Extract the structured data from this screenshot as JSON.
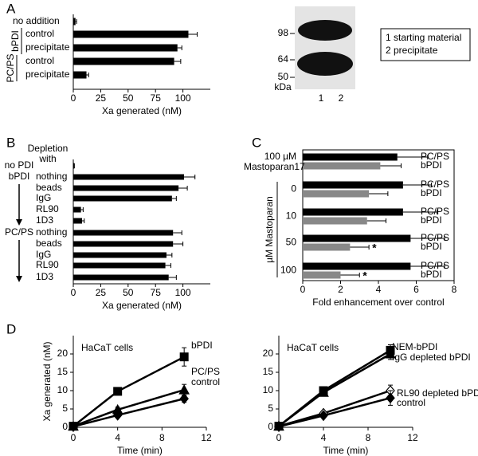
{
  "panels": [
    "A",
    "B",
    "C",
    "D"
  ],
  "gel": {
    "markers": [
      "98",
      "64",
      "50"
    ],
    "unit": "kDa",
    "lanes": [
      "1",
      "2"
    ],
    "legend": [
      "1 starting material",
      "2 precipitate"
    ]
  },
  "chart_data": [
    {
      "type": "hbar",
      "xlabel": "Xa generated (nM)",
      "xlim": [
        0,
        125
      ],
      "xticks": [
        0,
        25,
        50,
        75,
        100
      ],
      "color": "#000000",
      "groups": [
        {
          "categories": [
            "no addition"
          ],
          "values": [
            2
          ],
          "errors": [
            1
          ]
        },
        {
          "label": "bPDI",
          "categories": [
            "control",
            "precipitate"
          ],
          "values": [
            105,
            95
          ],
          "errors": [
            8,
            4
          ]
        },
        {
          "label": "PC/PS",
          "categories": [
            "control",
            "precipitate"
          ],
          "values": [
            92,
            12
          ],
          "errors": [
            6,
            2
          ]
        }
      ]
    },
    {
      "type": "hbar",
      "header": "Depletion with",
      "xlabel": "Xa generated (nM)",
      "xlim": [
        0,
        125
      ],
      "xticks": [
        0,
        25,
        50,
        75,
        100
      ],
      "color": "#000000",
      "groups": [
        {
          "label": "no PDI",
          "categories": [
            null
          ],
          "values": [
            1
          ],
          "errors": [
            0
          ]
        },
        {
          "label": "bPDI",
          "categories": [
            "nothing",
            "beads",
            "IgG",
            "RL90",
            "1D3"
          ],
          "values": [
            101,
            96,
            90,
            7,
            8
          ],
          "errors": [
            10,
            8,
            4,
            2,
            2
          ]
        },
        {
          "label": "PC/PS",
          "categories": [
            "nothing",
            "beads",
            "IgG",
            "RL90",
            "1D3"
          ],
          "values": [
            91,
            91,
            85,
            84,
            87
          ],
          "errors": [
            8,
            9,
            5,
            5,
            7
          ]
        }
      ]
    },
    {
      "type": "grouped-hbar",
      "xlabel": "Fold enhancement over control",
      "xlim": [
        0,
        8
      ],
      "xticks": [
        0,
        2,
        4,
        6,
        8
      ],
      "categories": [
        "100 µM Mastoparan17",
        "0",
        "10",
        "50",
        "100"
      ],
      "category_group": "µM Mastoparan",
      "series": [
        {
          "name": "PC/PS",
          "color": "#000000",
          "values": [
            5.0,
            5.3,
            5.3,
            5.7,
            5.7
          ],
          "errors": [
            1.6,
            1.5,
            1.8,
            1.8,
            1.8
          ]
        },
        {
          "name": "bPDI",
          "color": "#888888",
          "values": [
            4.1,
            3.5,
            3.4,
            2.5,
            2.0
          ],
          "errors": [
            1.1,
            1.0,
            1.0,
            1.0,
            1.0
          ],
          "significance": [
            null,
            null,
            null,
            "*",
            "*"
          ]
        }
      ]
    },
    {
      "type": "line",
      "annotation": "HaCaT cells",
      "xlabel": "Time (min)",
      "ylabel": "Xa generated (nM)",
      "xlim": [
        0,
        12
      ],
      "xticks": [
        0,
        4,
        8,
        12
      ],
      "ylim": [
        0,
        25
      ],
      "yticks": [
        0,
        5,
        10,
        15,
        20
      ],
      "x": [
        0,
        4,
        10
      ],
      "series": [
        {
          "name": "bPDI",
          "color": "#000000",
          "marker": "square",
          "values": [
            0.3,
            9.8,
            19.2
          ],
          "errors": [
            0.5,
            1.0,
            2.5
          ]
        },
        {
          "name": "PC/PS",
          "color": "#000000",
          "marker": "triangle",
          "values": [
            0.3,
            4.8,
            10.2
          ],
          "errors": [
            0.5,
            0.7,
            1.5
          ]
        },
        {
          "name": "control",
          "color": "#000000",
          "marker": "diamond",
          "values": [
            0.2,
            3.3,
            7.8
          ],
          "errors": [
            0.3,
            0.5,
            1.0
          ]
        }
      ]
    },
    {
      "type": "line",
      "annotation": "HaCaT cells",
      "xlabel": "Time (min)",
      "xlim": [
        0,
        12
      ],
      "xticks": [
        0,
        4,
        8,
        12
      ],
      "ylim": [
        0,
        25
      ],
      "yticks": [
        0,
        5,
        10,
        15,
        20
      ],
      "x": [
        0,
        4,
        10
      ],
      "series": [
        {
          "name": "NEM-bPDI",
          "color": "#000000",
          "marker": "square",
          "values": [
            0.3,
            10.0,
            21.0
          ],
          "errors": [
            0.5,
            1.0,
            1.5
          ]
        },
        {
          "name": "IgG depleted bPDI",
          "color": "#000000",
          "marker": "triangle",
          "values": [
            0.3,
            9.5,
            20.0
          ],
          "errors": [
            0.5,
            1.0,
            1.5
          ]
        },
        {
          "name": "RL90 depleted bPDI",
          "color": "#000000",
          "marker": "open-diamond",
          "values": [
            0.3,
            3.8,
            10.0
          ],
          "errors": [
            0.3,
            0.5,
            1.5
          ]
        },
        {
          "name": "control",
          "color": "#000000",
          "marker": "diamond",
          "values": [
            0.2,
            3.2,
            8.0
          ],
          "errors": [
            0.3,
            0.5,
            2.0
          ]
        }
      ]
    }
  ]
}
